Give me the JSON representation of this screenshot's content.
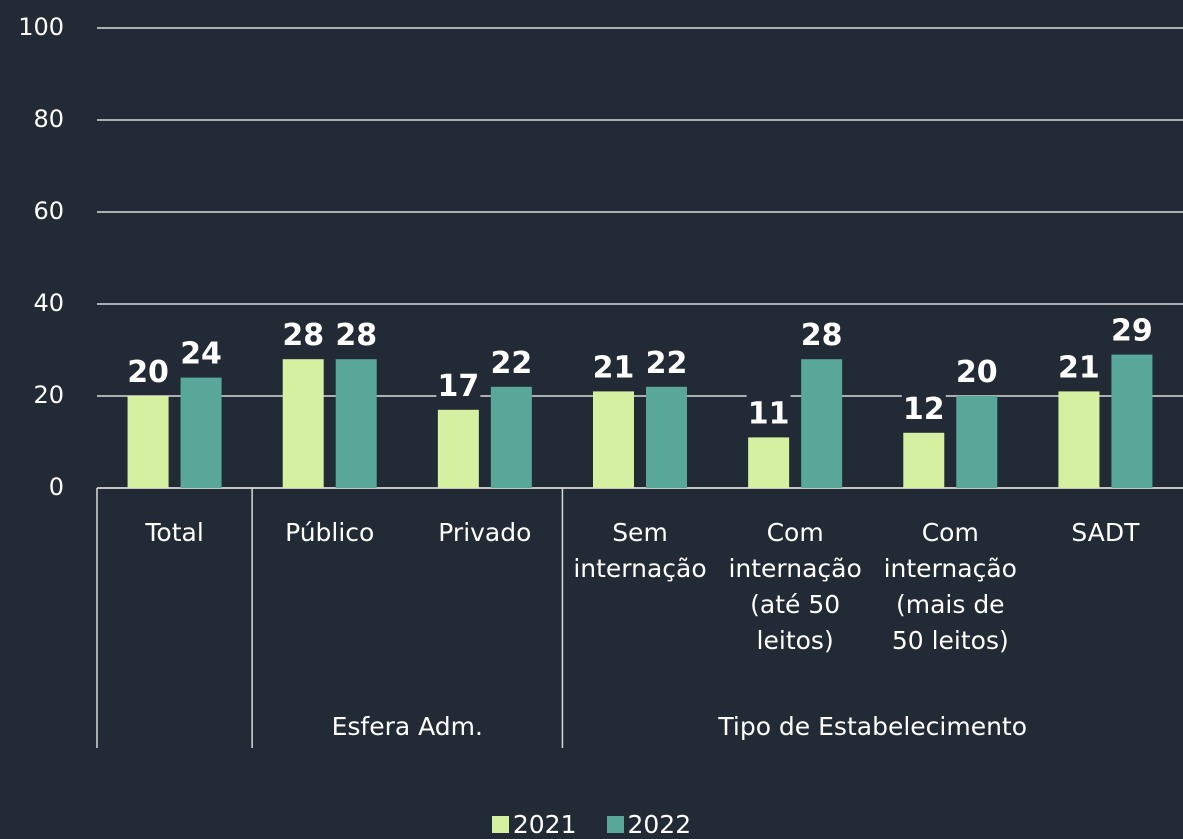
{
  "chart_data": {
    "type": "bar",
    "categories": [
      "Total",
      "Público",
      "Privado",
      "Sem\ninternação",
      "Com\ninternação\n(até 50\nleitos)",
      "Com\ninternação\n(mais de\n50 leitos)",
      "SADT"
    ],
    "groups": [
      {
        "name": null,
        "count": 1
      },
      {
        "name": "Esfera Adm.",
        "count": 2
      },
      {
        "name": "Tipo de Estabelecimento",
        "count": 4
      }
    ],
    "series": [
      {
        "name": "2021",
        "color": "#d6f0a2",
        "values": [
          20,
          28,
          17,
          21,
          11,
          12,
          21
        ]
      },
      {
        "name": "2022",
        "color": "#58a799",
        "values": [
          24,
          28,
          22,
          22,
          28,
          20,
          29
        ]
      }
    ],
    "ylim": [
      0,
      100
    ],
    "yticks": [
      0,
      20,
      40,
      60,
      80,
      100
    ],
    "grid": true,
    "legend": "bottom"
  }
}
